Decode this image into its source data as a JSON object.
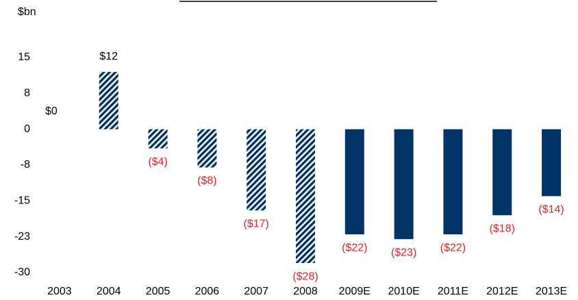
{
  "chart_data": {
    "type": "bar",
    "y_label": "$bn",
    "categories": [
      "2003",
      "2004",
      "2005",
      "2006",
      "2007",
      "2008",
      "2009E",
      "2010E",
      "2011E",
      "2012E",
      "2013E"
    ],
    "values": [
      0,
      12,
      -4,
      -8,
      -17,
      -28,
      -22,
      -23,
      -22,
      -18,
      -14
    ],
    "value_labels": [
      "$0",
      "$12",
      "($4)",
      "($8)",
      "($17)",
      "($28)",
      "($22)",
      "($23)",
      "($22)",
      "($18)",
      "($14)"
    ],
    "bar_styles": [
      "hatched",
      "hatched",
      "hatched",
      "hatched",
      "hatched",
      "hatched",
      "solid",
      "solid",
      "solid",
      "solid",
      "solid"
    ],
    "color": "#003366",
    "label_color": "#000000",
    "negative_label_color": "#e8202a",
    "ylim": [
      -30,
      15
    ],
    "yticks": [
      15,
      {
        "value": 7.5,
        "label": "8"
      },
      0,
      {
        "value": -7.5,
        "label": "-8"
      },
      -15,
      {
        "value": -22.5,
        "label": "-23"
      },
      -30
    ],
    "grid": false
  }
}
